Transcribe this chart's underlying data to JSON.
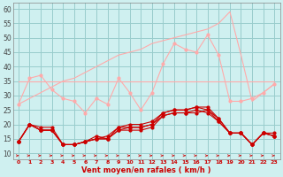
{
  "x": [
    0,
    1,
    2,
    3,
    4,
    5,
    6,
    7,
    8,
    9,
    10,
    11,
    12,
    13,
    14,
    15,
    16,
    17,
    18,
    19,
    20,
    21,
    22,
    23
  ],
  "line_diag": [
    27,
    29,
    31,
    33,
    35,
    36,
    38,
    40,
    42,
    44,
    45,
    46,
    48,
    49,
    50,
    51,
    52,
    53,
    55,
    59,
    44,
    28,
    31,
    34
  ],
  "line_horiz": [
    35,
    35,
    35,
    35,
    35,
    35,
    35,
    35,
    35,
    35,
    35,
    35,
    35,
    35,
    35,
    35,
    35,
    35,
    35,
    35,
    35,
    35,
    35,
    35
  ],
  "line_jagged": [
    27,
    36,
    37,
    32,
    29,
    28,
    24,
    29,
    27,
    36,
    31,
    25,
    31,
    41,
    48,
    46,
    45,
    51,
    44,
    28,
    28,
    29,
    31,
    34
  ],
  "line_dark1": [
    14,
    20,
    19,
    19,
    13,
    13,
    14,
    16,
    15,
    19,
    19,
    19,
    20,
    24,
    25,
    25,
    26,
    25,
    22,
    17,
    17,
    13,
    17,
    17
  ],
  "line_dark2": [
    14,
    20,
    18,
    18,
    13,
    13,
    14,
    15,
    15,
    18,
    18,
    18,
    19,
    23,
    24,
    24,
    25,
    24,
    21,
    17,
    17,
    13,
    17,
    16
  ],
  "line_dark3": [
    14,
    20,
    18,
    18,
    13,
    13,
    14,
    15,
    15,
    18,
    19,
    19,
    20,
    23,
    24,
    24,
    24,
    25,
    21,
    17,
    17,
    13,
    17,
    16
  ],
  "line_dark4": [
    14,
    20,
    18,
    18,
    13,
    13,
    14,
    15,
    16,
    19,
    20,
    20,
    21,
    24,
    25,
    25,
    26,
    26,
    22,
    17,
    17,
    13,
    17,
    16
  ],
  "bg_color": "#cff0f0",
  "grid_color": "#99cccc",
  "color_light": "#ffaaaa",
  "color_dark": "#cc0000",
  "xlabel": "Vent moyen/en rafales ( km/h )",
  "ylabel_ticks": [
    10,
    15,
    20,
    25,
    30,
    35,
    40,
    45,
    50,
    55,
    60
  ],
  "ylim": [
    8,
    62
  ],
  "xlim": [
    -0.5,
    23.5
  ],
  "arrow_dirs": [
    1,
    1,
    1,
    1,
    1,
    1,
    2,
    2,
    2,
    2,
    1,
    1,
    1,
    1,
    1,
    1,
    1,
    1,
    1,
    1,
    2,
    2,
    1,
    1
  ]
}
